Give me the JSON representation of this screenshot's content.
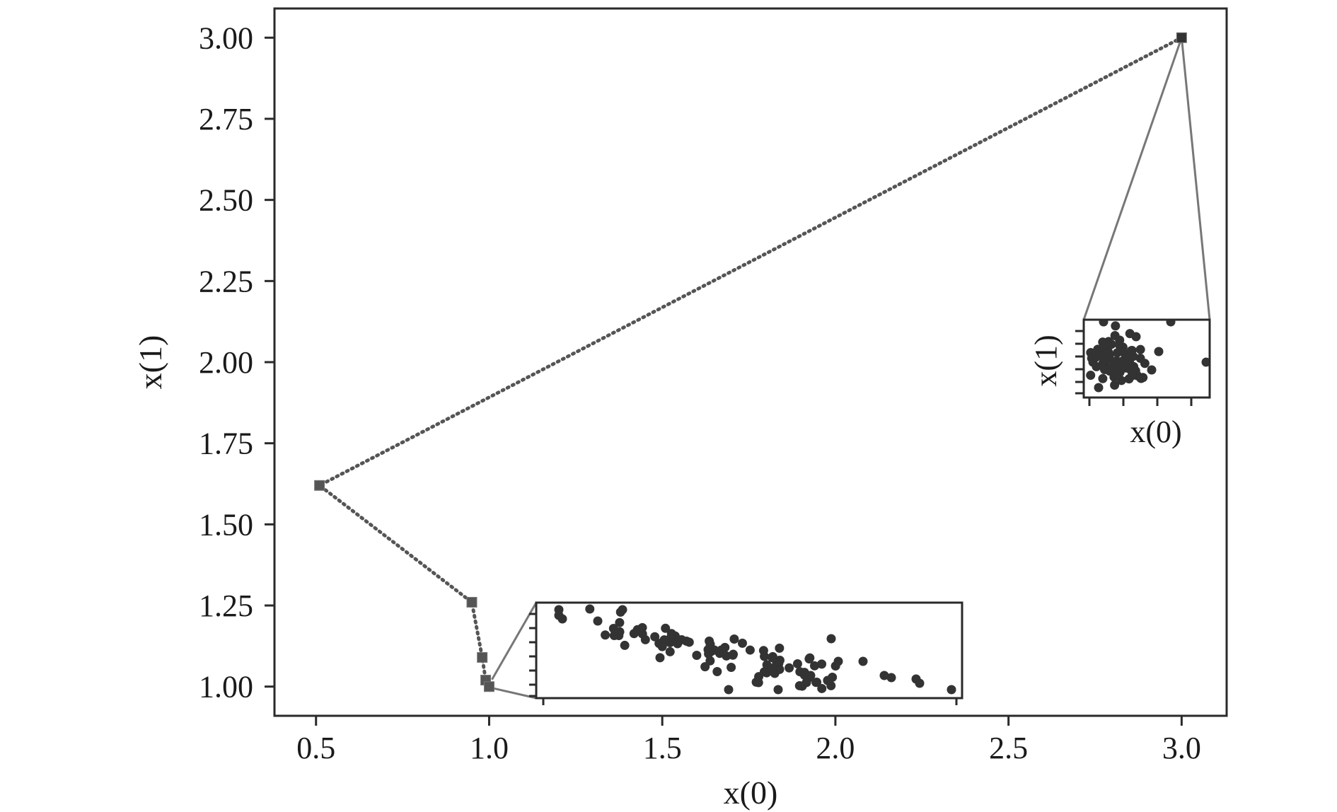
{
  "chart_data": {
    "type": "line",
    "xlabel": "x(0)",
    "ylabel": "x(1)",
    "xlim": [
      0.38,
      3.13
    ],
    "ylim": [
      0.91,
      3.09
    ],
    "x_ticks": [
      "0.5",
      "1.0",
      "1.5",
      "2.0",
      "2.5",
      "3.0"
    ],
    "y_ticks": [
      "1.00",
      "1.25",
      "1.50",
      "1.75",
      "2.00",
      "2.25",
      "2.50",
      "2.75",
      "3.00"
    ],
    "grid": false,
    "series": [
      {
        "style": "dotted",
        "marker": "square",
        "x": [
          3.0,
          0.51,
          0.95,
          0.98,
          0.99,
          1.0
        ],
        "y": [
          3.0,
          1.62,
          1.26,
          1.09,
          1.02,
          1.0
        ]
      }
    ],
    "insets": [
      {
        "xlabel": "x(0)",
        "ylabel": "x(1)",
        "zoom_target": [
          3.0,
          3.0
        ],
        "description_points": "cluster"
      },
      {
        "xlabel": "",
        "ylabel": "",
        "zoom_target": [
          1.0,
          1.0
        ],
        "description_points": "spread"
      }
    ]
  }
}
